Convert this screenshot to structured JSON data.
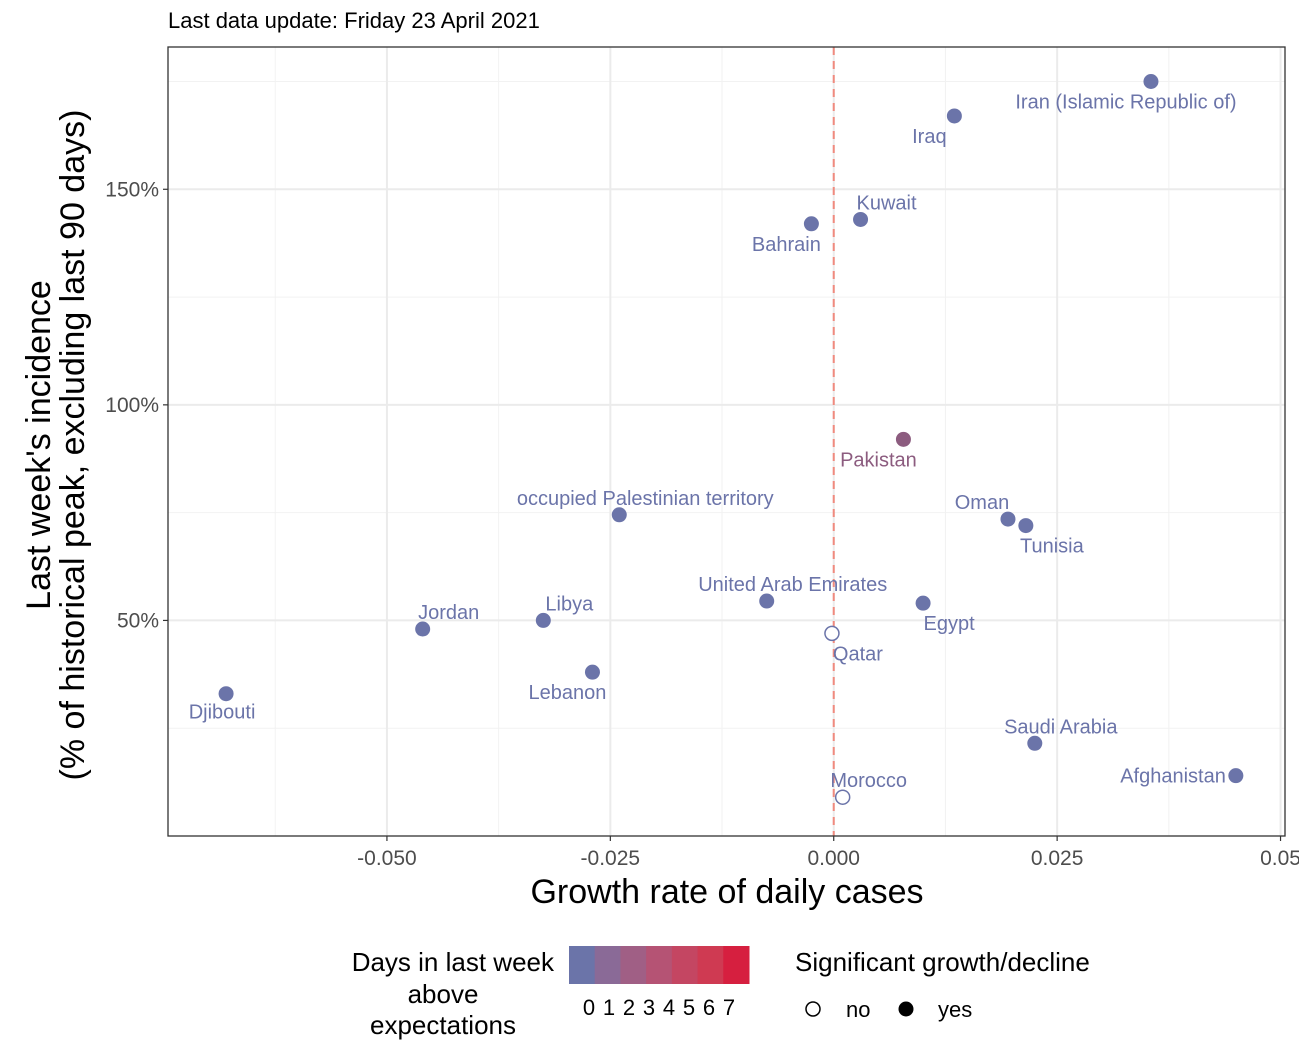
{
  "subtitle": "Last data update: Friday 23 April 2021",
  "chart_data": {
    "type": "scatter",
    "xlabel": "Growth rate of daily cases",
    "ylabel_line1": "Last week's incidence",
    "ylabel_line2": "(% of historical peak, excluding last 90 days)",
    "xlim": [
      -0.0745,
      0.0505
    ],
    "ylim": [
      0.0,
      1.83
    ],
    "x_ticks": [
      -0.05,
      -0.025,
      0.0,
      0.025,
      0.05
    ],
    "x_tick_labels": [
      "-0.050",
      "-0.025",
      "0.000",
      "0.025",
      "0.05"
    ],
    "y_ticks": [
      0.5,
      1.0,
      1.5
    ],
    "y_tick_labels": [
      "50%",
      "100%",
      "150%"
    ],
    "reference_line": {
      "x": 0.0,
      "style": "dashed",
      "color": "#f08a7e"
    },
    "grid": true,
    "colors": {
      "days_0": "#6b74a9",
      "days_2": "#8c5c7f",
      "hollow_stroke": "#6b74a9"
    },
    "points": [
      {
        "name": "Iran (Islamic Republic of)",
        "x": 0.0355,
        "y": 1.75,
        "days": 0,
        "significant": true
      },
      {
        "name": "Iraq",
        "x": 0.0135,
        "y": 1.67,
        "days": 0,
        "significant": true
      },
      {
        "name": "Kuwait",
        "x": 0.003,
        "y": 1.43,
        "days": 0,
        "significant": true
      },
      {
        "name": "Bahrain",
        "x": -0.0025,
        "y": 1.42,
        "days": 0,
        "significant": true
      },
      {
        "name": "Pakistan",
        "x": 0.0078,
        "y": 0.92,
        "days": 2,
        "significant": true
      },
      {
        "name": "occupied Palestinian territory",
        "x": -0.024,
        "y": 0.745,
        "days": 0,
        "significant": true
      },
      {
        "name": "Oman",
        "x": 0.0195,
        "y": 0.735,
        "days": 0,
        "significant": true
      },
      {
        "name": "Tunisia",
        "x": 0.0215,
        "y": 0.72,
        "days": 0,
        "significant": true
      },
      {
        "name": "United Arab Emirates",
        "x": -0.0075,
        "y": 0.545,
        "days": 0,
        "significant": true
      },
      {
        "name": "Egypt",
        "x": 0.01,
        "y": 0.54,
        "days": 0,
        "significant": true
      },
      {
        "name": "Libya",
        "x": -0.0325,
        "y": 0.5,
        "days": 0,
        "significant": true
      },
      {
        "name": "Jordan",
        "x": -0.046,
        "y": 0.48,
        "days": 0,
        "significant": true
      },
      {
        "name": "Qatar",
        "x": -0.0002,
        "y": 0.47,
        "days": 0,
        "significant": false
      },
      {
        "name": "Lebanon",
        "x": -0.027,
        "y": 0.38,
        "days": 0,
        "significant": true
      },
      {
        "name": "Djibouti",
        "x": -0.068,
        "y": 0.33,
        "days": 0,
        "significant": true
      },
      {
        "name": "Saudi Arabia",
        "x": 0.0225,
        "y": 0.215,
        "days": 0,
        "significant": true
      },
      {
        "name": "Afghanistan",
        "x": 0.045,
        "y": 0.14,
        "days": 0,
        "significant": true
      },
      {
        "name": "Morocco",
        "x": 0.001,
        "y": 0.09,
        "days": 0,
        "significant": false
      }
    ]
  },
  "legend": {
    "color_title_lines": [
      "Days in last week",
      "above",
      "expectations"
    ],
    "color_scale": [
      "#6b74a9",
      "#8a6a97",
      "#a05f85",
      "#b55374",
      "#c44662",
      "#cf3a52",
      "#d61f3f"
    ],
    "color_labels": [
      "0",
      "1",
      "2",
      "3",
      "4",
      "5",
      "6",
      "7"
    ],
    "shape_title": "Significant growth/decline",
    "shape_items": [
      {
        "label": "no",
        "filled": false
      },
      {
        "label": "yes",
        "filled": true
      }
    ]
  }
}
